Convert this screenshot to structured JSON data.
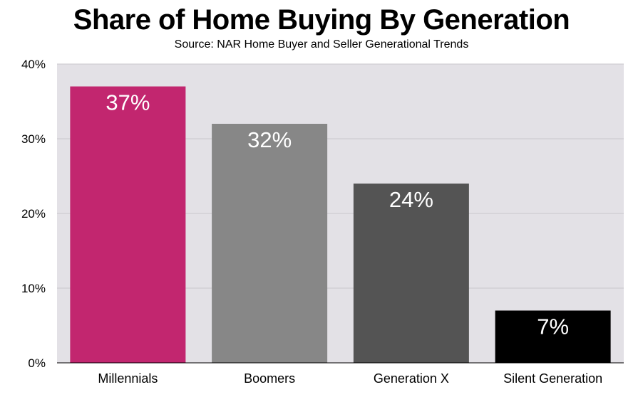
{
  "chart_data": {
    "type": "bar",
    "title": "Share of Home Buying By Generation",
    "subtitle": "Source: NAR Home Buyer and Seller Generational Trends",
    "categories": [
      "Millennials",
      "Boomers",
      "Generation X",
      "Silent Generation"
    ],
    "values": [
      37,
      32,
      24,
      7
    ],
    "data_labels": [
      "37%",
      "32%",
      "24%",
      "7%"
    ],
    "bar_colors": [
      "#c2266f",
      "#878787",
      "#545454",
      "#000000"
    ],
    "ylim": [
      0,
      40
    ],
    "yticks": [
      0,
      10,
      20,
      30,
      40
    ],
    "ytick_labels": [
      "0%",
      "10%",
      "20%",
      "30%",
      "40%"
    ],
    "xlabel": "",
    "ylabel": "",
    "grid": true,
    "plot_background": "#e3e1e6",
    "gridline_color": "#c9c7cc"
  }
}
